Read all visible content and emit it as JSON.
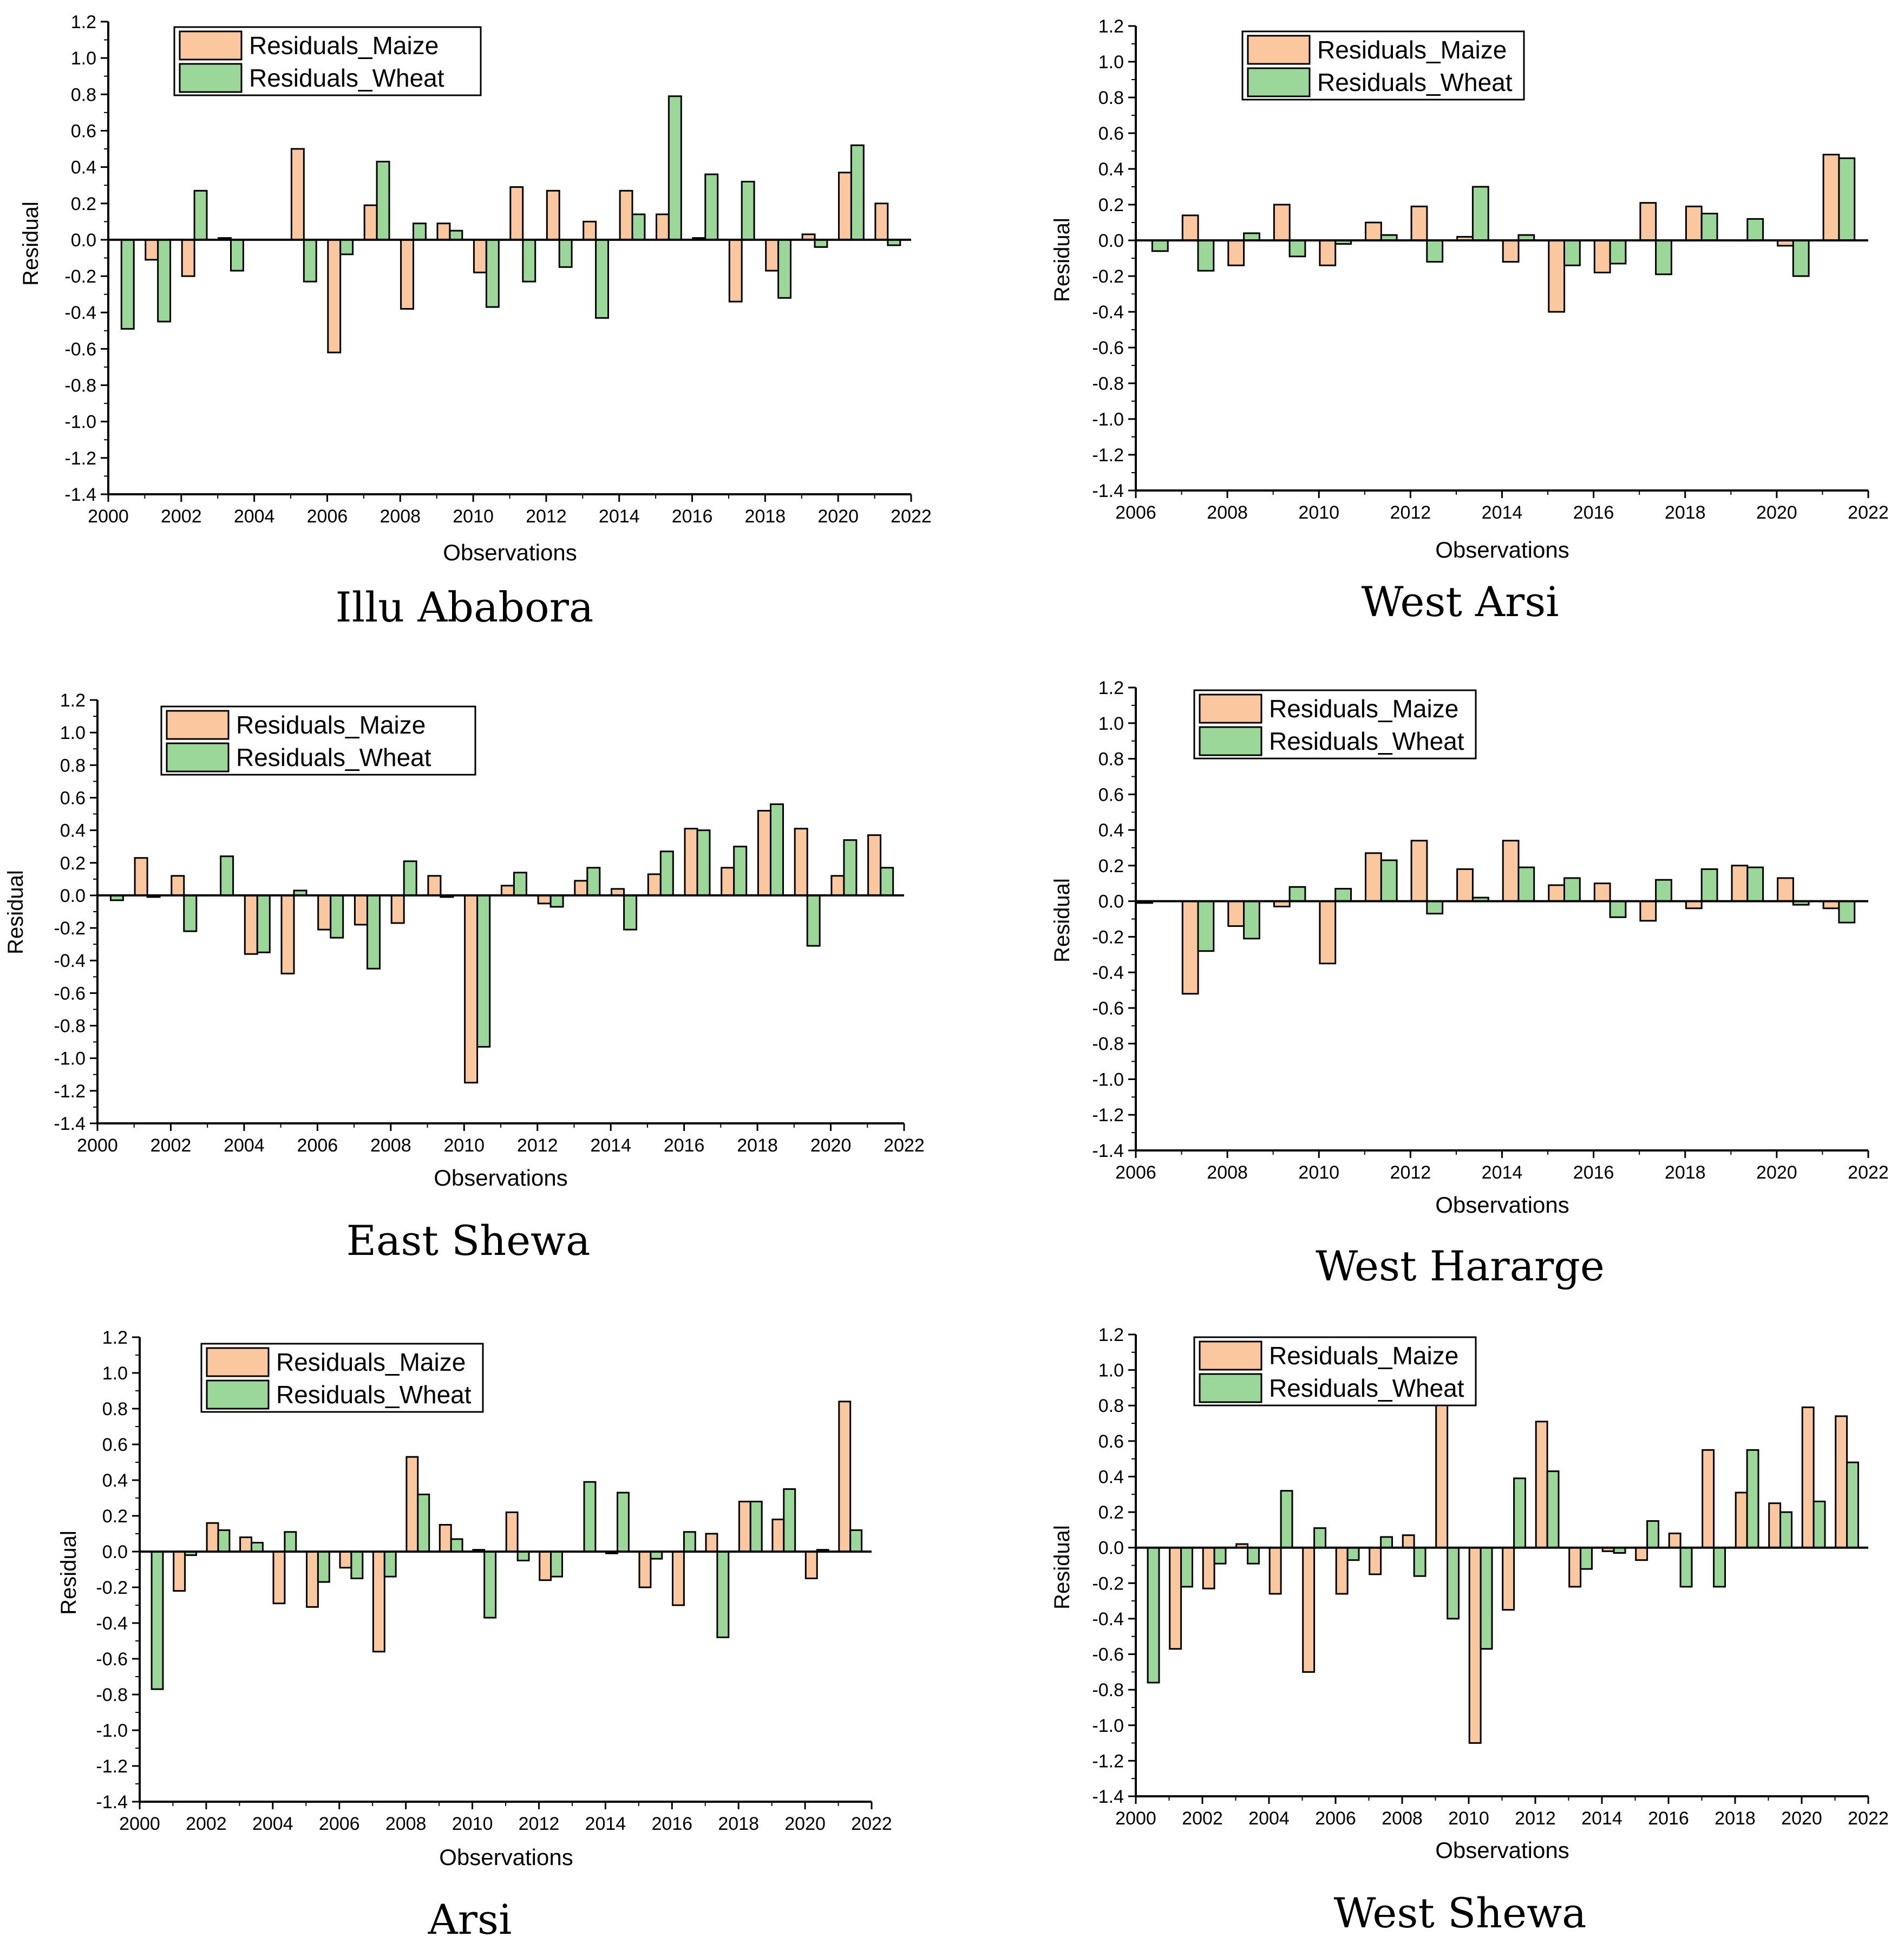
{
  "colors": {
    "maize": "#FBC79E",
    "wheat": "#9CD79A",
    "outline": "#000000",
    "background": "#FFFFFF"
  },
  "chart_data": [
    {
      "type": "bar",
      "caption": "Illu Ababora",
      "xlabel": "Observations",
      "ylabel": "Residual",
      "xlim": [
        2000,
        2022
      ],
      "ylim": [
        -1.4,
        1.2
      ],
      "xticks": [
        "2000",
        "2002",
        "2004",
        "2006",
        "2008",
        "2010",
        "2012",
        "2014",
        "2016",
        "2018",
        "2020",
        "2022"
      ],
      "yticks": [
        "-1.4",
        "-1.2",
        "-1.0",
        "-0.8",
        "-0.6",
        "-0.4",
        "-0.2",
        "0.0",
        "0.2",
        "0.4",
        "0.6",
        "0.8",
        "1.0",
        "1.2"
      ],
      "legend": [
        "Residuals_Maize",
        "Residuals_Wheat"
      ],
      "legend_position": "top-left",
      "x": [
        2000,
        2001,
        2002,
        2003,
        2004,
        2005,
        2006,
        2007,
        2008,
        2009,
        2010,
        2011,
        2012,
        2013,
        2014,
        2015,
        2016,
        2017,
        2018,
        2019,
        2020,
        2021
      ],
      "series": [
        {
          "name": "Residuals_Maize",
          "values": [
            0.0,
            -0.11,
            -0.2,
            0.01,
            0.0,
            0.5,
            -0.62,
            0.19,
            -0.38,
            0.09,
            -0.18,
            0.29,
            0.27,
            0.1,
            0.27,
            0.14,
            0.01,
            -0.34,
            -0.17,
            0.03,
            0.37,
            0.2
          ]
        },
        {
          "name": "Residuals_Wheat",
          "values": [
            -0.49,
            -0.45,
            0.27,
            -0.17,
            0.0,
            -0.23,
            -0.08,
            0.43,
            0.09,
            0.05,
            -0.37,
            -0.23,
            -0.15,
            -0.43,
            0.14,
            0.79,
            0.36,
            0.32,
            -0.32,
            -0.04,
            0.52,
            -0.03
          ]
        }
      ]
    },
    {
      "type": "bar",
      "caption": "West Arsi",
      "xlabel": "Observations",
      "ylabel": "Residual",
      "xlim": [
        2006,
        2022
      ],
      "ylim": [
        -1.4,
        1.2
      ],
      "xticks": [
        "2006",
        "2008",
        "2010",
        "2012",
        "2014",
        "2016",
        "2018",
        "2020",
        "2022"
      ],
      "yticks": [
        "-1.4",
        "-1.2",
        "-1.0",
        "-0.8",
        "-0.6",
        "-0.4",
        "-0.2",
        "0.0",
        "0.2",
        "0.4",
        "0.6",
        "0.8",
        "1.0",
        "1.2"
      ],
      "legend": [
        "Residuals_Maize",
        "Residuals_Wheat"
      ],
      "legend_position": "top-center",
      "x": [
        2006,
        2007,
        2008,
        2009,
        2010,
        2011,
        2012,
        2013,
        2014,
        2015,
        2016,
        2017,
        2018,
        2019,
        2020,
        2021
      ],
      "series": [
        {
          "name": "Residuals_Maize",
          "values": [
            0.0,
            0.14,
            -0.14,
            0.2,
            -0.14,
            0.1,
            0.19,
            0.02,
            -0.12,
            -0.4,
            -0.18,
            0.21,
            0.19,
            0.0,
            -0.03,
            0.48
          ]
        },
        {
          "name": "Residuals_Wheat",
          "values": [
            -0.06,
            -0.17,
            0.04,
            -0.09,
            -0.02,
            0.03,
            -0.12,
            0.3,
            0.03,
            -0.14,
            -0.13,
            -0.19,
            0.15,
            0.12,
            -0.2,
            0.46
          ]
        }
      ]
    },
    {
      "type": "bar",
      "caption": "East Shewa",
      "xlabel": "Observations",
      "ylabel": "Residual",
      "xlim": [
        2000,
        2022
      ],
      "ylim": [
        -1.4,
        1.2
      ],
      "xticks": [
        "2000",
        "2002",
        "2004",
        "2006",
        "2008",
        "2010",
        "2012",
        "2014",
        "2016",
        "2018",
        "2020",
        "2022"
      ],
      "yticks": [
        "-1.4",
        "-1.2",
        "-1.0",
        "-0.8",
        "-0.6",
        "-0.4",
        "-0.2",
        "0.0",
        "0.2",
        "0.4",
        "0.6",
        "0.8",
        "1.0",
        "1.2"
      ],
      "legend": [
        "Residuals_Maize",
        "Residuals_Wheat"
      ],
      "legend_position": "top-left",
      "x": [
        2000,
        2001,
        2002,
        2003,
        2004,
        2005,
        2006,
        2007,
        2008,
        2009,
        2010,
        2011,
        2012,
        2013,
        2014,
        2015,
        2016,
        2017,
        2018,
        2019,
        2020,
        2021
      ],
      "series": [
        {
          "name": "Residuals_Maize",
          "values": [
            0.0,
            0.23,
            0.12,
            0.0,
            -0.36,
            -0.48,
            -0.21,
            -0.18,
            -0.17,
            0.12,
            -1.15,
            0.06,
            -0.05,
            0.09,
            0.04,
            0.13,
            0.41,
            0.17,
            0.52,
            0.41,
            0.12,
            0.37
          ]
        },
        {
          "name": "Residuals_Wheat",
          "values": [
            -0.03,
            -0.01,
            -0.22,
            0.24,
            -0.35,
            0.03,
            -0.26,
            -0.45,
            0.21,
            -0.01,
            -0.93,
            0.14,
            -0.07,
            0.17,
            -0.21,
            0.27,
            0.4,
            0.3,
            0.56,
            -0.31,
            0.34,
            0.17
          ]
        }
      ]
    },
    {
      "type": "bar",
      "caption": "West Hararge",
      "xlabel": "Observations",
      "ylabel": "Residual",
      "xlim": [
        2006,
        2022
      ],
      "ylim": [
        -1.4,
        1.2
      ],
      "xticks": [
        "2006",
        "2008",
        "2010",
        "2012",
        "2014",
        "2016",
        "2018",
        "2020",
        "2022"
      ],
      "yticks": [
        "-1.4",
        "-1.2",
        "-1.0",
        "-0.8",
        "-0.6",
        "-0.4",
        "-0.2",
        "0.0",
        "0.2",
        "0.4",
        "0.6",
        "0.8",
        "1.0",
        "1.2"
      ],
      "legend": [
        "Residuals_Maize",
        "Residuals_Wheat"
      ],
      "legend_position": "top-left",
      "x": [
        2006,
        2007,
        2008,
        2009,
        2010,
        2011,
        2012,
        2013,
        2014,
        2015,
        2016,
        2017,
        2018,
        2019,
        2020,
        2021
      ],
      "series": [
        {
          "name": "Residuals_Maize",
          "values": [
            -0.01,
            -0.52,
            -0.14,
            -0.03,
            -0.35,
            0.27,
            0.34,
            0.18,
            0.34,
            0.09,
            0.1,
            -0.11,
            -0.04,
            0.2,
            0.13,
            -0.04
          ]
        },
        {
          "name": "Residuals_Wheat",
          "values": [
            0.0,
            -0.28,
            -0.21,
            0.08,
            0.07,
            0.23,
            -0.07,
            0.02,
            0.19,
            0.13,
            -0.09,
            0.12,
            0.18,
            0.19,
            -0.02,
            -0.12
          ]
        }
      ]
    },
    {
      "type": "bar",
      "caption": "Arsi",
      "xlabel": "Observations",
      "ylabel": "Residual",
      "xlim": [
        2000,
        2022
      ],
      "ylim": [
        -1.4,
        1.2
      ],
      "xticks": [
        "2000",
        "2002",
        "2004",
        "2006",
        "2008",
        "2010",
        "2012",
        "2014",
        "2016",
        "2018",
        "2020",
        "2022"
      ],
      "yticks": [
        "-1.4",
        "-1.2",
        "-1.0",
        "-0.8",
        "-0.6",
        "-0.4",
        "-0.2",
        "0.0",
        "0.2",
        "0.4",
        "0.6",
        "0.8",
        "1.0",
        "1.2"
      ],
      "legend": [
        "Residuals_Maize",
        "Residuals_Wheat"
      ],
      "legend_position": "top-center",
      "x": [
        2000,
        2001,
        2002,
        2003,
        2004,
        2005,
        2006,
        2007,
        2008,
        2009,
        2010,
        2011,
        2012,
        2013,
        2014,
        2015,
        2016,
        2017,
        2018,
        2019,
        2020,
        2021
      ],
      "series": [
        {
          "name": "Residuals_Maize",
          "values": [
            0.0,
            -0.22,
            0.16,
            0.08,
            -0.29,
            -0.31,
            -0.09,
            -0.56,
            0.53,
            0.15,
            0.01,
            0.22,
            -0.16,
            0.0,
            -0.01,
            -0.2,
            -0.3,
            0.1,
            0.28,
            0.18,
            -0.15,
            0.84
          ]
        },
        {
          "name": "Residuals_Wheat",
          "values": [
            -0.77,
            -0.02,
            0.12,
            0.05,
            0.11,
            -0.17,
            -0.15,
            -0.14,
            0.32,
            0.07,
            -0.37,
            -0.05,
            -0.14,
            0.39,
            0.33,
            -0.04,
            0.11,
            -0.48,
            0.28,
            0.35,
            0.01,
            0.12
          ]
        }
      ]
    },
    {
      "type": "bar",
      "caption": "West Shewa",
      "xlabel": "Observations",
      "ylabel": "Residual",
      "xlim": [
        2000,
        2022
      ],
      "ylim": [
        -1.4,
        1.2
      ],
      "xticks": [
        "2000",
        "2002",
        "2004",
        "2006",
        "2008",
        "2010",
        "2012",
        "2014",
        "2016",
        "2018",
        "2020",
        "2022"
      ],
      "yticks": [
        "-1.4",
        "-1.2",
        "-1.0",
        "-0.8",
        "-0.6",
        "-0.4",
        "-0.2",
        "0.0",
        "0.2",
        "0.4",
        "0.6",
        "0.8",
        "1.0",
        "1.2"
      ],
      "legend": [
        "Residuals_Maize",
        "Residuals_Wheat"
      ],
      "legend_position": "top-left",
      "x": [
        2000,
        2001,
        2002,
        2003,
        2004,
        2005,
        2006,
        2007,
        2008,
        2009,
        2010,
        2011,
        2012,
        2013,
        2014,
        2015,
        2016,
        2017,
        2018,
        2019,
        2020,
        2021
      ],
      "series": [
        {
          "name": "Residuals_Maize",
          "values": [
            0.0,
            -0.57,
            -0.23,
            0.02,
            -0.26,
            -0.7,
            -0.26,
            -0.15,
            0.07,
            0.82,
            -1.1,
            -0.35,
            0.71,
            -0.22,
            -0.02,
            -0.07,
            0.08,
            0.55,
            0.31,
            0.25,
            0.79,
            0.74
          ]
        },
        {
          "name": "Residuals_Wheat",
          "values": [
            -0.76,
            -0.22,
            -0.09,
            -0.09,
            0.32,
            0.11,
            -0.07,
            0.06,
            -0.16,
            -0.4,
            -0.57,
            0.39,
            0.43,
            -0.12,
            -0.03,
            0.15,
            -0.22,
            -0.22,
            0.55,
            0.2,
            0.26,
            0.48
          ]
        }
      ]
    }
  ]
}
